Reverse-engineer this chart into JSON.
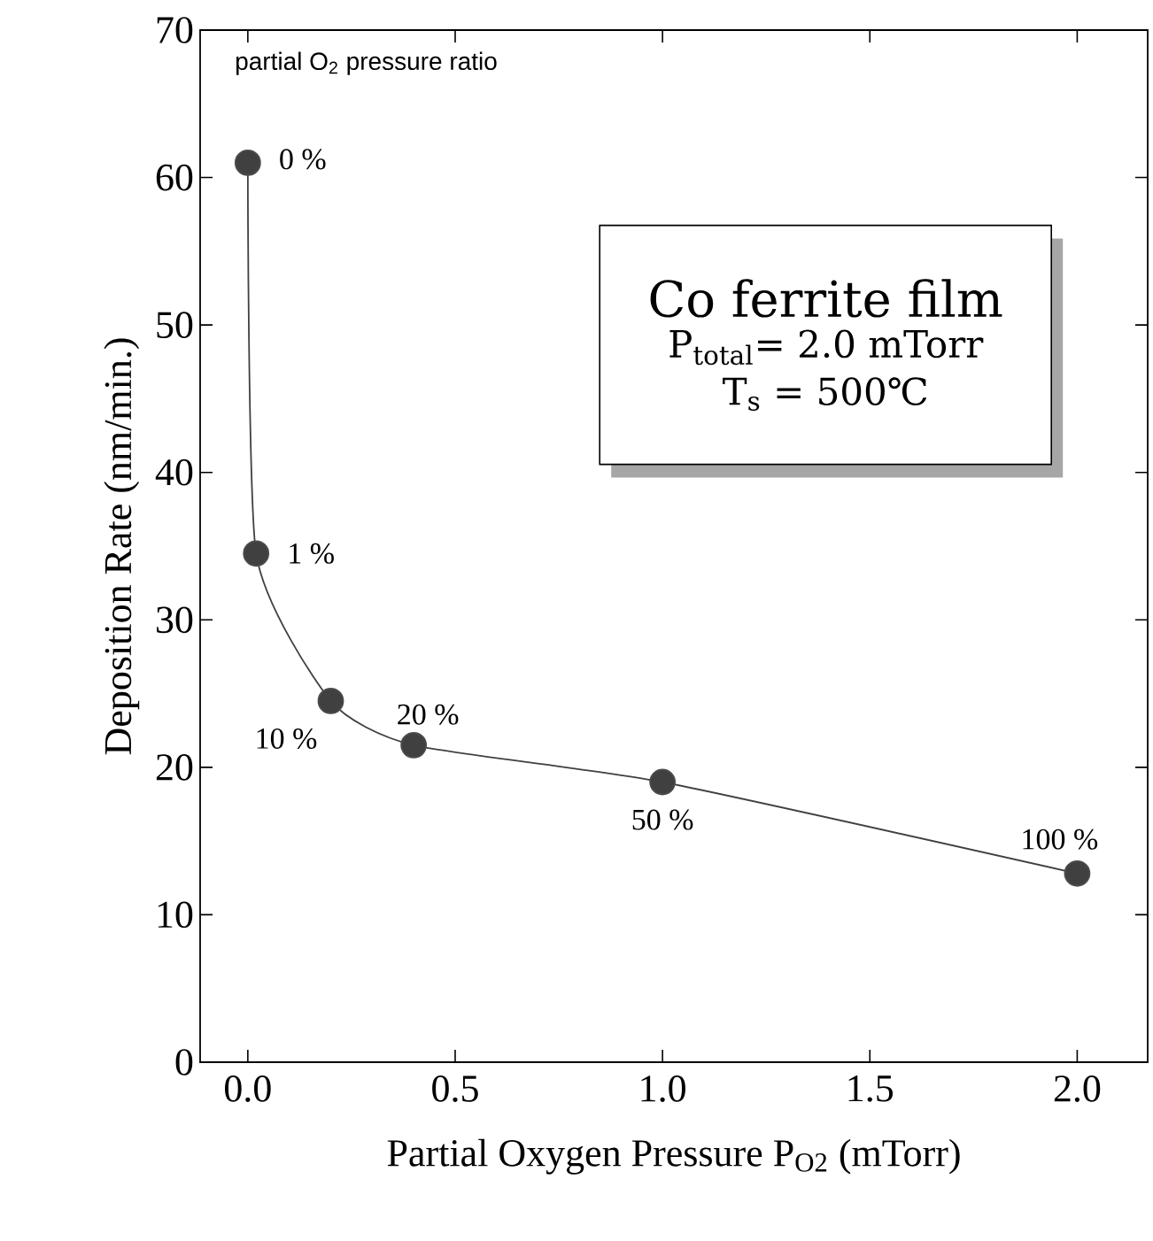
{
  "chart_data": {
    "type": "line",
    "xlabel": "Partial Oxygen Pressure P$_{O2}$ (mTorr)",
    "ylabel": "Deposition Rate (nm/min.)",
    "x": [
      0,
      0.02,
      0.2,
      0.4,
      1.0,
      2.0
    ],
    "series": [
      {
        "color": "#404040",
        "values": [
          61,
          34.5,
          24.5,
          21.5,
          19,
          12.8
        ]
      }
    ],
    "xlim": [
      -0.115,
      2.17
    ],
    "ylim": [
      0,
      70
    ],
    "xticks": [
      {
        "value": 0,
        "label": "0.0"
      },
      {
        "value": 0.5,
        "label": "0.5"
      },
      {
        "value": 1,
        "label": "1.0"
      },
      {
        "value": 1.5,
        "label": "1.5"
      },
      {
        "value": 2,
        "label": "2.0"
      }
    ],
    "yticks": [
      0,
      10,
      20,
      30,
      40,
      50,
      60,
      70
    ],
    "marker": "circle",
    "line_style": "solid",
    "grid": false,
    "annotations": [
      "partial O$_{2}$ pressure ratio",
      {
        "text": "0 %",
        "x": 0,
        "y": 61
      },
      {
        "text": "1 %",
        "x": 0.02,
        "y": 34.5
      },
      {
        "text": "10 %",
        "x": 0.2,
        "y": 24.5
      },
      {
        "text": "20 %",
        "x": 0.4,
        "y": 21.5
      },
      {
        "text": "50 %",
        "x": 1.0,
        "y": 19
      },
      {
        "text": "100 %",
        "x": 2.0,
        "y": 12.8
      },
      "Co ferrite film",
      "P$_{total}$= 2.0 mTorr",
      "T$_{s}$ = 500℃"
    ]
  }
}
